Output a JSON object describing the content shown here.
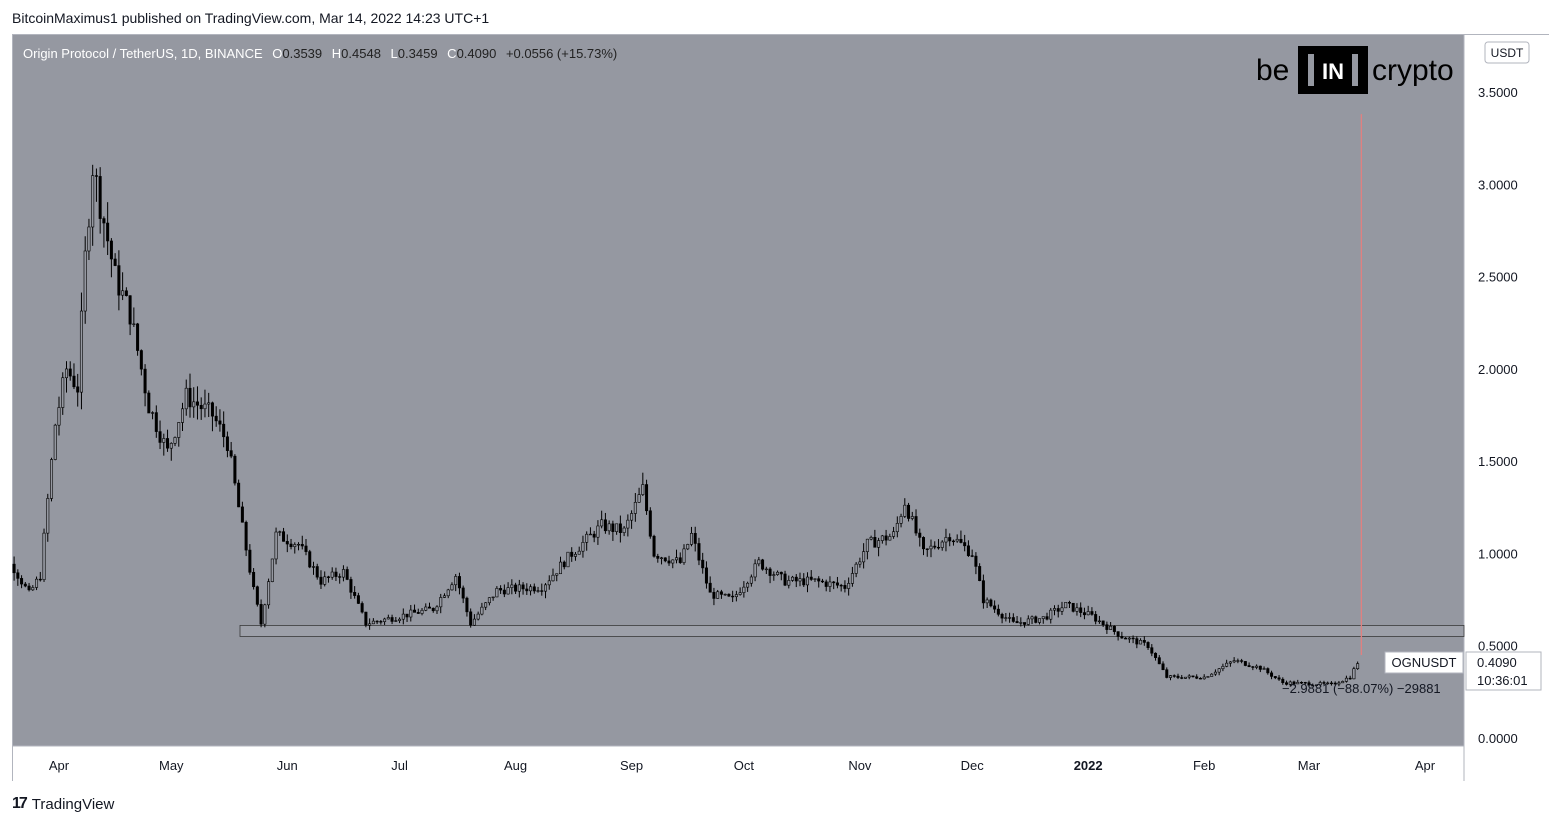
{
  "header": {
    "publisher_line": "BitcoinMaximus1 published on TradingView.com, Mar 14, 2022 14:23 UTC+1"
  },
  "legend": {
    "symbol_line": "Origin Protocol / TetherUS, 1D, BINANCE",
    "o_label": "O",
    "o_value": "0.3539",
    "h_label": "H",
    "h_value": "0.4548",
    "l_label": "L",
    "l_value": "0.3459",
    "c_label": "C",
    "c_value": "0.4090",
    "change": "+0.0556 (+15.73%)"
  },
  "watermark": {
    "be": "be",
    "in": "IN",
    "crypto": "crypto"
  },
  "price_axis": {
    "currency": "USDT",
    "ticker_label": "OGNUSDT",
    "last_price": "0.4090",
    "countdown": "10:36:01"
  },
  "measure_label": "−2.9881 (−88.07%) −29881",
  "footer": {
    "brand": "TradingView",
    "mark": "17"
  },
  "colors": {
    "plot_bg": "#9598a1",
    "candle": "#000000",
    "support_zone": "#a1a4ac",
    "red_line": "#e08080",
    "axis_text": "#131722"
  },
  "chart_data": {
    "type": "candlestick",
    "title": "Origin Protocol / TetherUS, 1D, BINANCE",
    "ylabel": "USDT",
    "ylim": [
      0,
      3.75
    ],
    "yticks": [
      0.0,
      0.5,
      1.0,
      1.5,
      2.0,
      2.5,
      3.0,
      3.5
    ],
    "ytick_labels": [
      "0.0000",
      "0.5000",
      "1.0000",
      "1.5000",
      "2.0000",
      "2.5000",
      "3.0000",
      "3.5000"
    ],
    "xticks": [
      {
        "label": "Apr",
        "date": "2021-04-01"
      },
      {
        "label": "May",
        "date": "2021-05-01"
      },
      {
        "label": "Jun",
        "date": "2021-06-01"
      },
      {
        "label": "Jul",
        "date": "2021-07-01"
      },
      {
        "label": "Aug",
        "date": "2021-08-01"
      },
      {
        "label": "Sep",
        "date": "2021-09-01"
      },
      {
        "label": "Oct",
        "date": "2021-10-01"
      },
      {
        "label": "Nov",
        "date": "2021-11-01"
      },
      {
        "label": "Dec",
        "date": "2021-12-01"
      },
      {
        "label": "2022",
        "date": "2022-01-01"
      },
      {
        "label": "Feb",
        "date": "2022-02-01"
      },
      {
        "label": "Mar",
        "date": "2022-03-01"
      },
      {
        "label": "Apr",
        "date": "2022-04-01"
      }
    ],
    "x_range": [
      "2021-03-13",
      "2022-04-11"
    ],
    "close_path": [
      {
        "date": "2021-03-13",
        "close": 1.05
      },
      {
        "date": "2021-03-20",
        "close": 0.92
      },
      {
        "date": "2021-03-24",
        "close": 0.78
      },
      {
        "date": "2021-03-27",
        "close": 0.88
      },
      {
        "date": "2021-03-31",
        "close": 1.7
      },
      {
        "date": "2021-04-03",
        "close": 2.0
      },
      {
        "date": "2021-04-06",
        "close": 1.9
      },
      {
        "date": "2021-04-08",
        "close": 2.6
      },
      {
        "date": "2021-04-10",
        "close": 3.1
      },
      {
        "date": "2021-04-12",
        "close": 2.9
      },
      {
        "date": "2021-04-16",
        "close": 2.5
      },
      {
        "date": "2021-04-20",
        "close": 2.3
      },
      {
        "date": "2021-04-25",
        "close": 1.8
      },
      {
        "date": "2021-04-30",
        "close": 1.55
      },
      {
        "date": "2021-05-05",
        "close": 1.85
      },
      {
        "date": "2021-05-12",
        "close": 1.75
      },
      {
        "date": "2021-05-16",
        "close": 1.6
      },
      {
        "date": "2021-05-19",
        "close": 1.25
      },
      {
        "date": "2021-05-23",
        "close": 0.8
      },
      {
        "date": "2021-05-25",
        "close": 0.62
      },
      {
        "date": "2021-05-29",
        "close": 1.1
      },
      {
        "date": "2021-06-04",
        "close": 1.05
      },
      {
        "date": "2021-06-10",
        "close": 0.85
      },
      {
        "date": "2021-06-16",
        "close": 0.9
      },
      {
        "date": "2021-06-22",
        "close": 0.62
      },
      {
        "date": "2021-07-01",
        "close": 0.66
      },
      {
        "date": "2021-07-10",
        "close": 0.7
      },
      {
        "date": "2021-07-16",
        "close": 0.88
      },
      {
        "date": "2021-07-20",
        "close": 0.62
      },
      {
        "date": "2021-07-27",
        "close": 0.8
      },
      {
        "date": "2021-08-08",
        "close": 0.82
      },
      {
        "date": "2021-08-16",
        "close": 1.0
      },
      {
        "date": "2021-08-24",
        "close": 1.15
      },
      {
        "date": "2021-08-30",
        "close": 1.12
      },
      {
        "date": "2021-09-04",
        "close": 1.35
      },
      {
        "date": "2021-09-07",
        "close": 1.0
      },
      {
        "date": "2021-09-14",
        "close": 0.95
      },
      {
        "date": "2021-09-17",
        "close": 1.1
      },
      {
        "date": "2021-09-22",
        "close": 0.78
      },
      {
        "date": "2021-09-28",
        "close": 0.75
      },
      {
        "date": "2021-10-05",
        "close": 0.95
      },
      {
        "date": "2021-10-12",
        "close": 0.85
      },
      {
        "date": "2021-10-20",
        "close": 0.85
      },
      {
        "date": "2021-10-28",
        "close": 0.82
      },
      {
        "date": "2021-11-03",
        "close": 1.05
      },
      {
        "date": "2021-11-10",
        "close": 1.1
      },
      {
        "date": "2021-11-13",
        "close": 1.28
      },
      {
        "date": "2021-11-18",
        "close": 1.0
      },
      {
        "date": "2021-11-25",
        "close": 1.1
      },
      {
        "date": "2021-12-01",
        "close": 1.0
      },
      {
        "date": "2021-12-04",
        "close": 0.75
      },
      {
        "date": "2021-12-12",
        "close": 0.62
      },
      {
        "date": "2021-12-20",
        "close": 0.65
      },
      {
        "date": "2021-12-26",
        "close": 0.72
      },
      {
        "date": "2022-01-02",
        "close": 0.66
      },
      {
        "date": "2022-01-10",
        "close": 0.55
      },
      {
        "date": "2022-01-17",
        "close": 0.5
      },
      {
        "date": "2022-01-22",
        "close": 0.33
      },
      {
        "date": "2022-02-01",
        "close": 0.33
      },
      {
        "date": "2022-02-09",
        "close": 0.42
      },
      {
        "date": "2022-02-16",
        "close": 0.38
      },
      {
        "date": "2022-02-22",
        "close": 0.3
      },
      {
        "date": "2022-03-07",
        "close": 0.29
      },
      {
        "date": "2022-03-12",
        "close": 0.33
      },
      {
        "date": "2022-03-14",
        "close": 0.409
      }
    ],
    "annotations": {
      "support_zone": [
        0.55,
        0.61
      ],
      "vertical_line_date": "2022-03-15",
      "vertical_line_top": 3.38
    }
  }
}
